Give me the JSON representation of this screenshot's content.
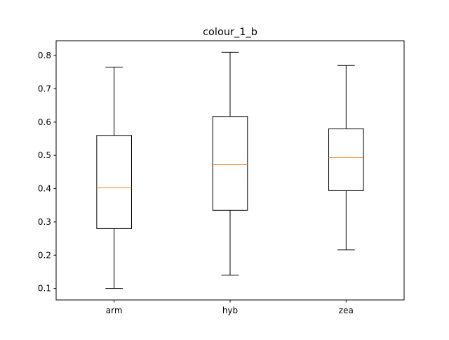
{
  "chart_data": {
    "type": "boxplot",
    "title": "colour_1_b",
    "xlabel": "",
    "ylabel": "",
    "categories": [
      "arm",
      "hyb",
      "zea"
    ],
    "boxes": [
      {
        "category": "arm",
        "whisker_low": 0.1,
        "q1": 0.28,
        "median": 0.403,
        "q3": 0.56,
        "whisker_high": 0.765
      },
      {
        "category": "hyb",
        "whisker_low": 0.14,
        "q1": 0.335,
        "median": 0.472,
        "q3": 0.617,
        "whisker_high": 0.81
      },
      {
        "category": "zea",
        "whisker_low": 0.216,
        "q1": 0.394,
        "median": 0.493,
        "q3": 0.58,
        "whisker_high": 0.77
      }
    ],
    "ylim": [
      0.0655,
      0.8445
    ],
    "yticks": [
      0.1,
      0.2,
      0.3,
      0.4,
      0.5,
      0.6,
      0.7,
      0.8
    ],
    "ytick_labels": [
      "0.1",
      "0.2",
      "0.3",
      "0.4",
      "0.5",
      "0.6",
      "0.7",
      "0.8"
    ],
    "grid": false,
    "colors": {
      "box": "#000000",
      "median": "#ff7f0e",
      "axes": "#000000"
    }
  }
}
